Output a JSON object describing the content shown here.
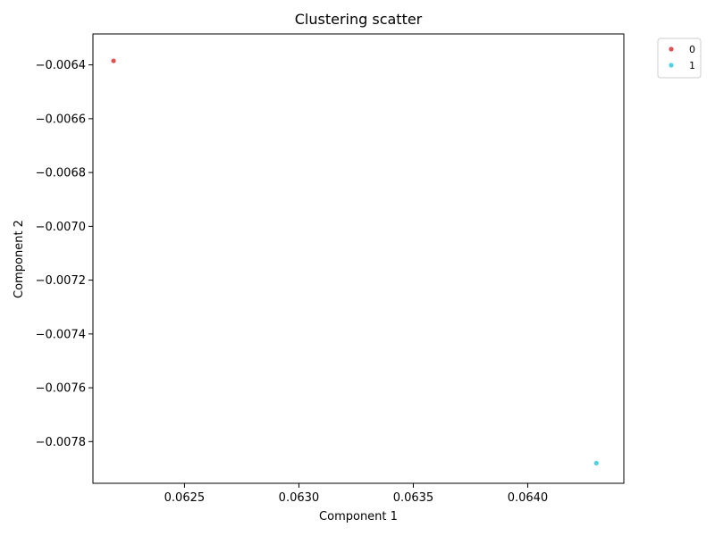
{
  "chart_data": {
    "type": "scatter",
    "title": "Clustering scatter",
    "xlabel": "Component 1",
    "ylabel": "Component 2",
    "xlim": [
      0.0621,
      0.06442
    ],
    "ylim": [
      -0.007955,
      -0.006285
    ],
    "x_ticks": [
      0.0625,
      0.063,
      0.0635,
      0.064
    ],
    "x_tick_labels": [
      "0.0625",
      "0.0630",
      "0.0635",
      "0.0640"
    ],
    "y_ticks": [
      -0.0064,
      -0.0066,
      -0.0068,
      -0.007,
      -0.0072,
      -0.0074,
      -0.0076,
      -0.0078
    ],
    "y_tick_labels": [
      "−0.0064",
      "−0.0066",
      "−0.0068",
      "−0.0070",
      "−0.0072",
      "−0.0074",
      "−0.0076",
      "−0.0078"
    ],
    "grid": false,
    "legend_position": "outside-top-right",
    "series": [
      {
        "name": "0",
        "color": "#e05252",
        "points": [
          [
            0.06219,
            -0.006385
          ]
        ]
      },
      {
        "name": "1",
        "color": "#4fd3e0",
        "points": [
          [
            0.0643,
            -0.00788
          ]
        ]
      }
    ]
  }
}
